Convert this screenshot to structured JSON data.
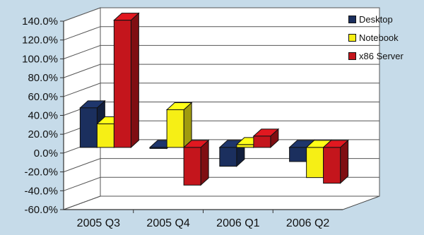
{
  "chart_data": {
    "type": "bar",
    "subtype": "3d-clustered-column",
    "categories": [
      "2005 Q3",
      "2005 Q4",
      "2006 Q1",
      "2006 Q2"
    ],
    "series": [
      {
        "name": "Desktop",
        "color": "#1b2f5e",
        "values": [
          42,
          0,
          -20,
          -15
        ]
      },
      {
        "name": "Notebook",
        "color": "#f6ef15",
        "values": [
          25,
          40,
          3,
          -32
        ]
      },
      {
        "name": "x86 Server",
        "color": "#c4151c",
        "values": [
          135,
          -40,
          12,
          -38
        ]
      }
    ],
    "ylim": [
      -60,
      140
    ],
    "yticks": [
      "-60.0%",
      "-40.0%",
      "-20.0%",
      "0.0%",
      "20.0%",
      "40.0%",
      "60.0%",
      "80.0%",
      "100.0%",
      "120.0%",
      "140.0%"
    ],
    "ytick_values": [
      -60,
      -40,
      -20,
      0,
      20,
      40,
      60,
      80,
      100,
      120,
      140
    ],
    "grid": true,
    "legend": "right",
    "background": "#c6dbe9",
    "wall_color": "#ffffff"
  }
}
